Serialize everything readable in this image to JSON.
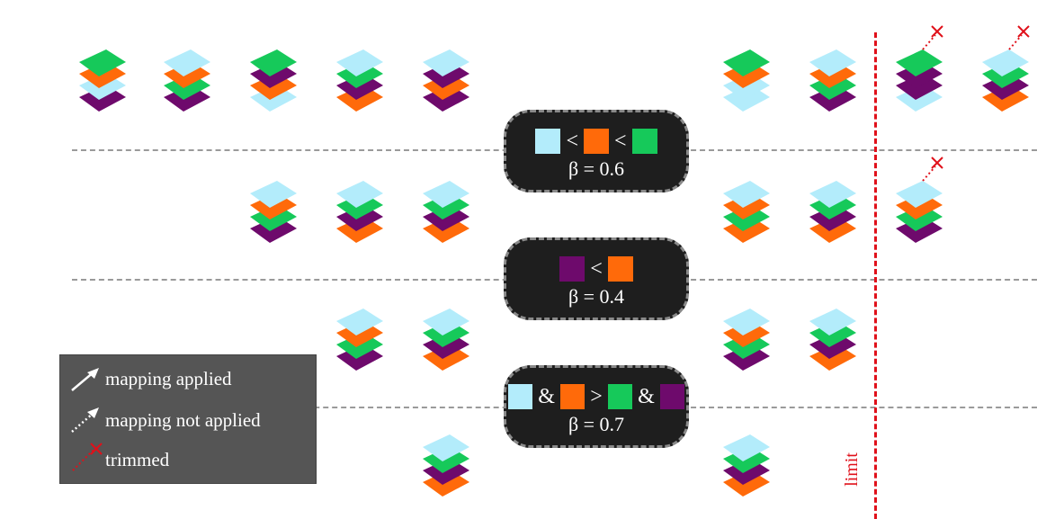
{
  "colors": {
    "light_blue": "#b3ecfb",
    "orange": "#ff6a0a",
    "green": "#16c95a",
    "purple": "#6e0a6c",
    "limit": "#e0101a",
    "box_bg": "#1e1e1e",
    "legend_bg": "#555555"
  },
  "rules": [
    {
      "beta_text": "β = 0.6",
      "tokens": [
        {
          "kind": "swatch",
          "color": "light_blue"
        },
        {
          "kind": "op",
          "text": "<"
        },
        {
          "kind": "swatch",
          "color": "orange"
        },
        {
          "kind": "op",
          "text": "<"
        },
        {
          "kind": "swatch",
          "color": "green"
        }
      ]
    },
    {
      "beta_text": "β = 0.4",
      "tokens": [
        {
          "kind": "swatch",
          "color": "purple"
        },
        {
          "kind": "op",
          "text": "<"
        },
        {
          "kind": "swatch",
          "color": "orange"
        }
      ]
    },
    {
      "beta_text": "β = 0.7",
      "tokens": [
        {
          "kind": "swatch",
          "color": "light_blue"
        },
        {
          "kind": "op",
          "text": "&"
        },
        {
          "kind": "swatch",
          "color": "orange"
        },
        {
          "kind": "op",
          "text": ">"
        },
        {
          "kind": "swatch",
          "color": "green"
        },
        {
          "kind": "op",
          "text": "&"
        },
        {
          "kind": "swatch",
          "color": "purple"
        }
      ]
    }
  ],
  "limit_label": "limit",
  "legend": {
    "applied": "mapping applied",
    "not_applied": "mapping not applied",
    "trimmed": "trimmed"
  },
  "stacks": [
    {
      "row": 0,
      "col": 0,
      "layers": [
        "purple",
        "light_blue",
        "orange",
        "green"
      ]
    },
    {
      "row": 0,
      "col": 1,
      "layers": [
        "purple",
        "green",
        "orange",
        "light_blue"
      ]
    },
    {
      "row": 0,
      "col": 2,
      "layers": [
        "light_blue",
        "orange",
        "purple",
        "green"
      ]
    },
    {
      "row": 0,
      "col": 3,
      "layers": [
        "orange",
        "purple",
        "green",
        "light_blue"
      ]
    },
    {
      "row": 0,
      "col": 4,
      "layers": [
        "purple",
        "orange",
        "purple",
        "light_blue"
      ]
    },
    {
      "row": 0,
      "col": 5,
      "layers": [
        "light_blue",
        "light_blue",
        "orange",
        "green"
      ]
    },
    {
      "row": 0,
      "col": 6,
      "layers": [
        "purple",
        "green",
        "orange",
        "light_blue"
      ]
    },
    {
      "row": 0,
      "col": 7,
      "layers": [
        "light_blue",
        "purple",
        "purple",
        "green"
      ],
      "trimmed": true
    },
    {
      "row": 0,
      "col": 8,
      "layers": [
        "orange",
        "purple",
        "green",
        "light_blue"
      ],
      "trimmed": true
    },
    {
      "row": 1,
      "col": 2,
      "layers": [
        "purple",
        "green",
        "orange",
        "light_blue"
      ]
    },
    {
      "row": 1,
      "col": 3,
      "layers": [
        "orange",
        "purple",
        "green",
        "light_blue"
      ]
    },
    {
      "row": 1,
      "col": 4,
      "layers": [
        "orange",
        "purple",
        "green",
        "light_blue"
      ]
    },
    {
      "row": 1,
      "col": 5,
      "layers": [
        "orange",
        "green",
        "orange",
        "light_blue"
      ]
    },
    {
      "row": 1,
      "col": 6,
      "layers": [
        "orange",
        "purple",
        "green",
        "light_blue"
      ]
    },
    {
      "row": 1,
      "col": 7,
      "layers": [
        "purple",
        "green",
        "orange",
        "light_blue"
      ],
      "trimmed": true
    },
    {
      "row": 2,
      "col": 3,
      "layers": [
        "purple",
        "green",
        "orange",
        "light_blue"
      ]
    },
    {
      "row": 2,
      "col": 4,
      "layers": [
        "orange",
        "purple",
        "green",
        "light_blue"
      ]
    },
    {
      "row": 2,
      "col": 5,
      "layers": [
        "purple",
        "green",
        "orange",
        "light_blue"
      ]
    },
    {
      "row": 2,
      "col": 6,
      "layers": [
        "orange",
        "purple",
        "green",
        "light_blue"
      ]
    },
    {
      "row": 3,
      "col": 4,
      "layers": [
        "orange",
        "purple",
        "green",
        "light_blue"
      ]
    },
    {
      "row": 3,
      "col": 5,
      "layers": [
        "orange",
        "purple",
        "green",
        "light_blue"
      ]
    }
  ]
}
